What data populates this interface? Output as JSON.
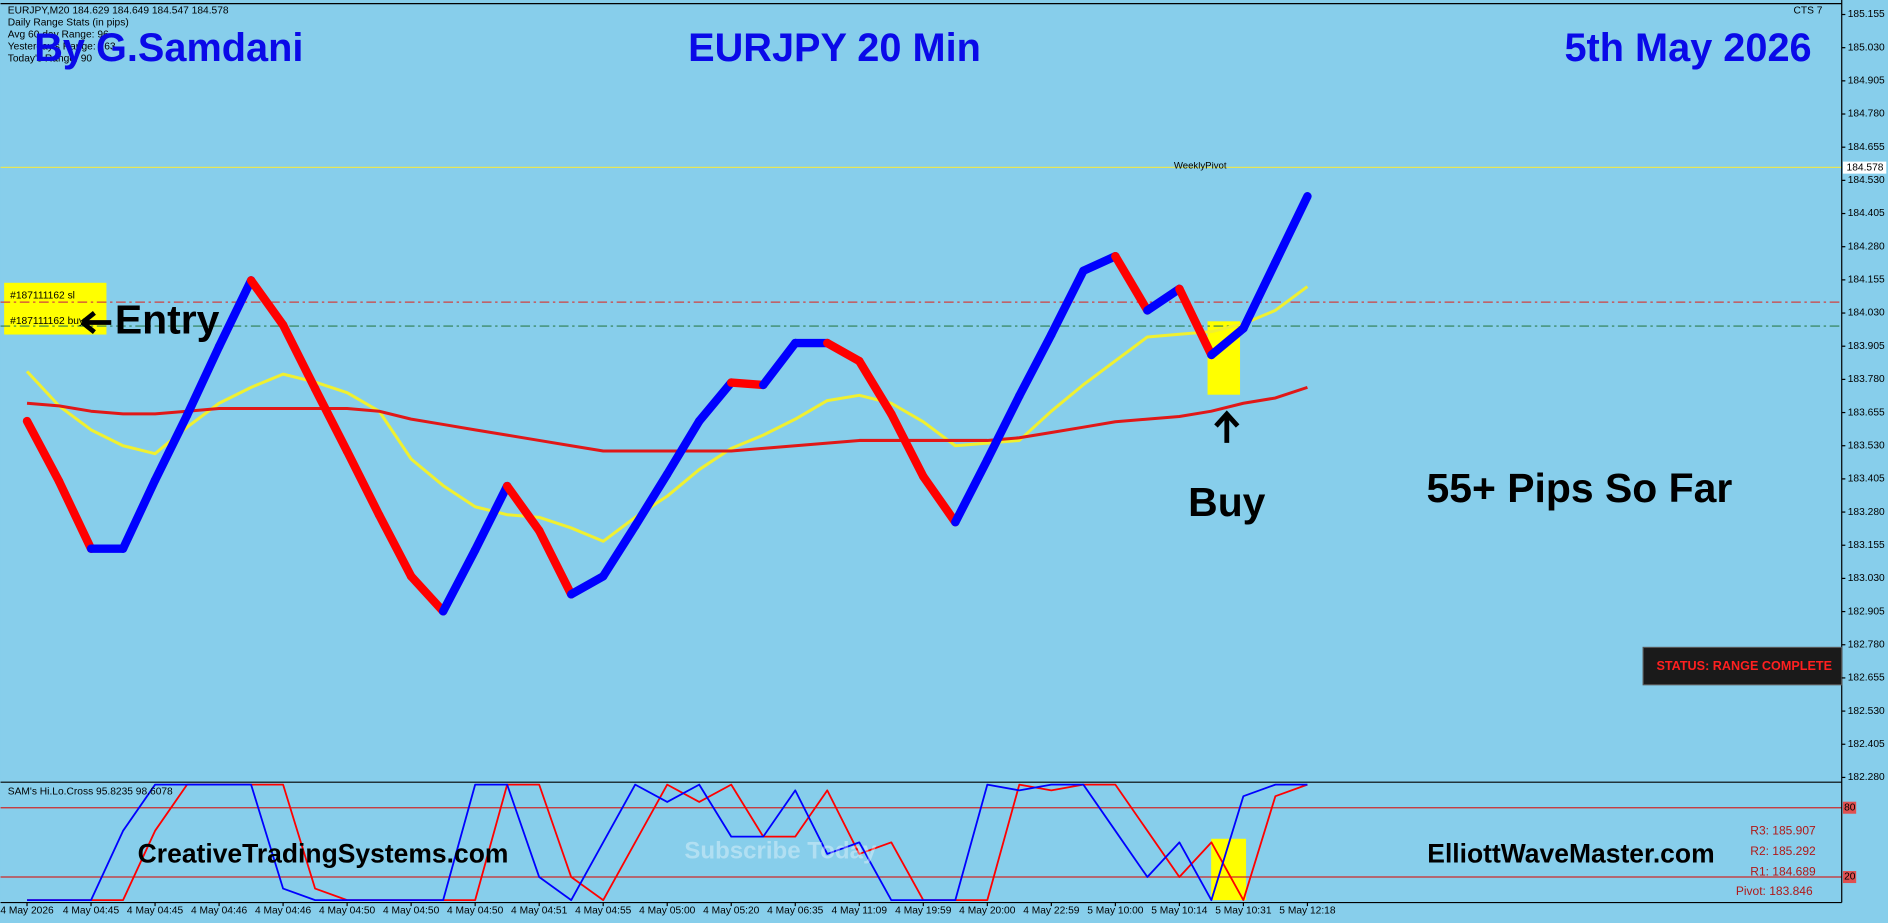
{
  "header": {
    "symbol_info": "EURJPY,M20  184.629 184.649 184.547 184.578",
    "stats_title": "Daily Range Stats (in pips)",
    "stats": [
      "Avg 60 day Range: 96",
      "Yesterday's Range: 163",
      "Today's Range: 90"
    ],
    "corner": "CTS 7"
  },
  "annotations": {
    "author": "By G.Samdani",
    "date": "5th May 2026",
    "entry": "Entry",
    "buy": "Buy",
    "result": "55+ Pips So Far",
    "status": "STATUS: RANGE COMPLETE",
    "site_left": "CreativeTradingSystems.com",
    "site_right": "ElliottWaveMaster.com",
    "watermark": "Subscribe Today",
    "orders": [
      "#187111162 sl",
      "#187111162 buy"
    ],
    "pivots": [
      "R3: 185.907",
      "R2: 185.292",
      "R1: 184.689",
      "Pivot: 183.846"
    ]
  },
  "chart_data": [
    {
      "type": "line",
      "title": "EURJPY 20 Min",
      "categories": [
        "4 May 2026",
        null,
        "4 May 04:45",
        null,
        "4 May 04:45",
        null,
        "4 May 04:46",
        null,
        "4 May 04:46",
        null,
        "4 May 04:50",
        null,
        "4 May 04:50",
        null,
        "4 May 04:50",
        null,
        "4 May 04:51",
        null,
        "4 May 04:55",
        null,
        "4 May 05:00",
        null,
        "4 May 05:20",
        null,
        "4 May 06:35",
        null,
        "4 May 11:09",
        null,
        "4 May 19:59",
        null,
        "4 May 20:00",
        null,
        "4 May 22:59",
        null,
        "5 May 10:00",
        null,
        "5 May 10:14",
        null,
        "5 May 10:31",
        null,
        "5 May 12:18"
      ],
      "series": [
        {
          "up_color": "#0000ff",
          "down_color": "#ff0000",
          "values": [
            183.623,
            183.396,
            183.142,
            183.142,
            183.4,
            183.645,
            183.904,
            184.153,
            183.985,
            183.745,
            183.509,
            183.269,
            183.038,
            182.906,
            183.137,
            183.378,
            183.21,
            182.97,
            183.038,
            183.228,
            183.423,
            183.623,
            183.768,
            183.759,
            183.917,
            183.917,
            183.849,
            183.65,
            183.414,
            183.242,
            183.477,
            183.718,
            183.949,
            184.189,
            184.244,
            184.04,
            184.121,
            183.872,
            183.972,
            184.221,
            184.47
          ]
        },
        {
          "color": "#e01818",
          "values": [
            183.69,
            183.68,
            183.66,
            183.65,
            183.65,
            183.66,
            183.67,
            183.67,
            183.67,
            183.67,
            183.67,
            183.66,
            183.63,
            183.61,
            183.59,
            183.57,
            183.55,
            183.53,
            183.51,
            183.51,
            183.51,
            183.51,
            183.51,
            183.52,
            183.53,
            183.54,
            183.55,
            183.55,
            183.55,
            183.55,
            183.55,
            183.56,
            183.58,
            183.6,
            183.62,
            183.63,
            183.64,
            183.66,
            183.69,
            183.71,
            183.75
          ]
        },
        {
          "color": "#f0f030",
          "values": [
            183.81,
            183.68,
            183.59,
            183.53,
            183.5,
            183.6,
            183.69,
            183.75,
            183.8,
            183.77,
            183.73,
            183.66,
            183.48,
            183.38,
            183.3,
            183.27,
            183.26,
            183.22,
            183.17,
            183.26,
            183.34,
            183.44,
            183.52,
            183.57,
            183.63,
            183.7,
            183.72,
            183.69,
            183.62,
            183.53,
            183.54,
            183.55,
            183.66,
            183.76,
            183.85,
            183.94,
            183.95,
            183.96,
            183.99,
            184.04,
            184.13
          ]
        }
      ],
      "ylim": [
        182.262,
        185.187
      ],
      "yticks": [
        185.155,
        {
          "value": 185.03,
          "label": "185.030"
        },
        184.905,
        {
          "value": 184.78,
          "label": "184.780"
        },
        184.655,
        {
          "value": 184.53,
          "label": "184.530"
        },
        184.405,
        {
          "value": 184.28,
          "label": "184.280"
        },
        184.155,
        {
          "value": 184.03,
          "label": "184.030"
        },
        183.905,
        {
          "value": 183.78,
          "label": "183.780"
        },
        183.655,
        {
          "value": 183.53,
          "label": "183.530"
        },
        183.405,
        {
          "value": 183.28,
          "label": "183.280"
        },
        183.155,
        {
          "value": 183.03,
          "label": "183.030"
        },
        182.905,
        {
          "value": 182.78,
          "label": "182.780"
        },
        182.655,
        {
          "value": 182.53,
          "label": "182.530"
        },
        182.405,
        {
          "value": 182.28,
          "label": "182.280"
        }
      ],
      "hlines": [
        {
          "value": 184.579,
          "label": "WeeklyPivot",
          "color": "#e6e65a"
        },
        {
          "value": 184.071,
          "color": "#d04040"
        },
        {
          "value": 183.981,
          "color": "#2e7d4f"
        }
      ],
      "last_price": 184.578,
      "grid": false
    },
    {
      "type": "line",
      "title": "SAM's Hi.Lo.Cross 95.8235 98.6078",
      "series": [
        {
          "color": "#0000ff",
          "values": [
            0,
            0,
            0,
            60,
            100,
            100,
            100,
            100,
            10,
            0,
            0,
            0,
            0,
            0,
            100,
            100,
            20,
            0,
            50,
            100,
            85,
            100,
            55,
            55,
            95,
            40,
            50,
            0,
            0,
            0,
            100,
            95,
            100,
            100,
            60,
            20,
            50,
            0,
            90,
            100,
            100
          ]
        },
        {
          "color": "#ff0000",
          "values": [
            0,
            0,
            0,
            0,
            60,
            100,
            100,
            100,
            100,
            10,
            0,
            0,
            0,
            0,
            0,
            100,
            100,
            20,
            0,
            50,
            100,
            85,
            100,
            55,
            55,
            95,
            40,
            50,
            0,
            0,
            0,
            100,
            95,
            100,
            100,
            60,
            20,
            50,
            0,
            90,
            100
          ]
        }
      ],
      "ylim": [
        0,
        100
      ],
      "yticks": [
        20,
        80
      ],
      "grid": false
    }
  ]
}
